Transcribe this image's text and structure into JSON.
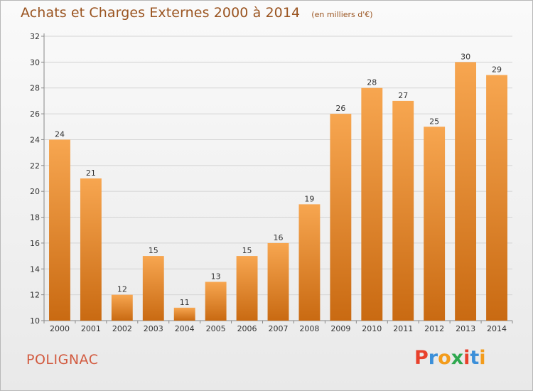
{
  "header": {
    "title": "Achats et Charges Externes 2000 à 2014",
    "unit": "(en milliers d'€)"
  },
  "footer": {
    "commune": "POLIGNAC",
    "brand": [
      "P",
      "r",
      "o",
      "x",
      "i",
      "t",
      "i"
    ],
    "brand_colors": [
      "#e8412c",
      "#3b8fd9",
      "#f39c1c",
      "#2fa84f",
      "#e8412c",
      "#3b8fd9",
      "#f39c1c"
    ]
  },
  "chart_data": {
    "type": "bar",
    "title": "Achats et Charges Externes 2000 à 2014",
    "subtitle": "(en milliers d'€)",
    "xlabel": "",
    "ylabel": "",
    "categories": [
      "2000",
      "2001",
      "2002",
      "2003",
      "2004",
      "2005",
      "2006",
      "2007",
      "2008",
      "2009",
      "2010",
      "2011",
      "2012",
      "2013",
      "2014"
    ],
    "values": [
      24,
      21,
      12,
      15,
      11,
      13,
      15,
      16,
      19,
      26,
      28,
      27,
      25,
      30,
      29
    ],
    "ylim": [
      10,
      32
    ],
    "yticks": [
      10,
      12,
      14,
      16,
      18,
      20,
      22,
      24,
      26,
      28,
      30,
      32
    ],
    "grid": true,
    "legend": "none",
    "bar_color_top": "#f7a650",
    "bar_color_bottom": "#c96a12"
  }
}
